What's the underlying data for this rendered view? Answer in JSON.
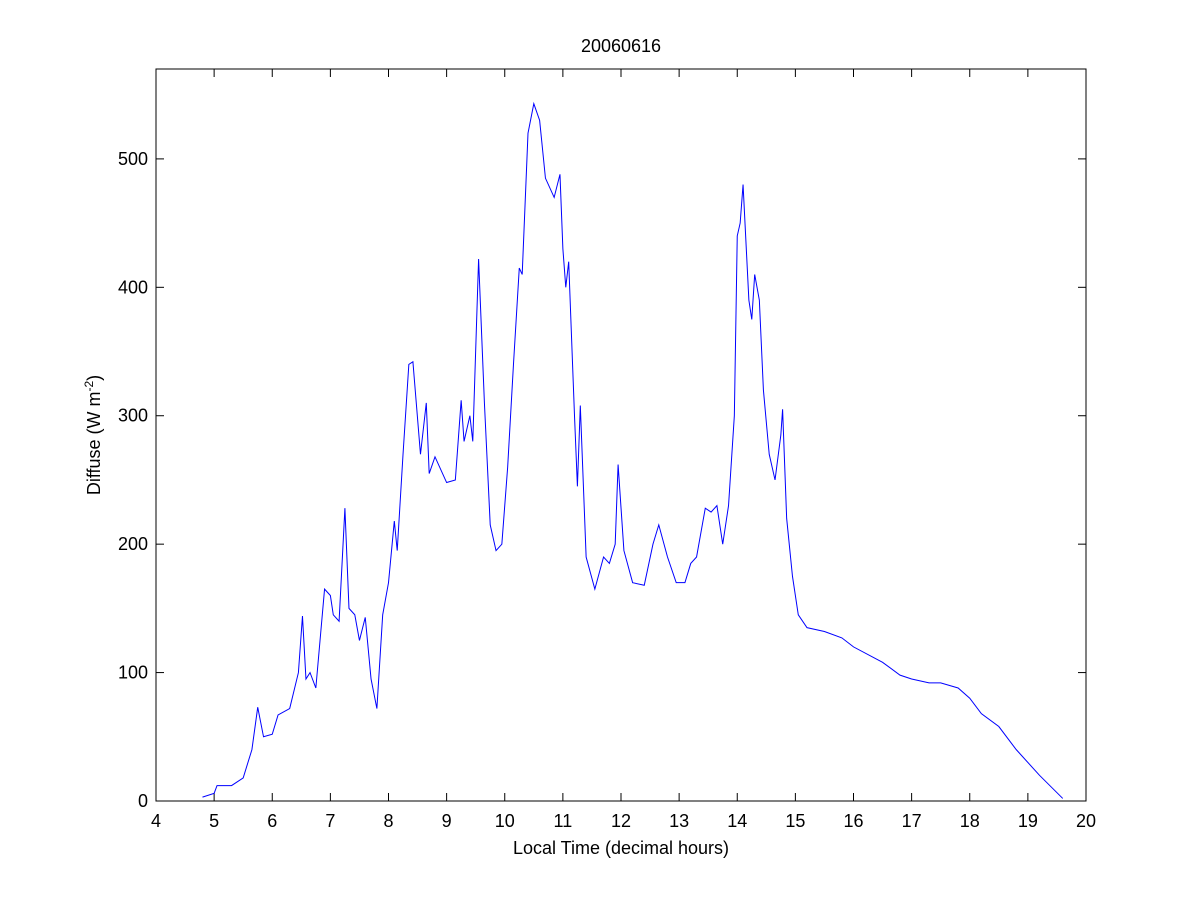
{
  "chart_data": {
    "type": "line",
    "title": "20060616",
    "x_label": "Local Time (decimal hours)",
    "y_label": {
      "text": "Diffuse (W m",
      "superscript": "-2",
      "close": ")"
    },
    "xlim": [
      4,
      20
    ],
    "xticks": [
      4,
      5,
      6,
      7,
      8,
      9,
      10,
      11,
      12,
      13,
      14,
      15,
      16,
      17,
      18,
      19,
      20
    ],
    "ylim": [
      0,
      570
    ],
    "yticks": [
      0,
      100,
      200,
      300,
      400,
      500
    ],
    "grid": false,
    "series": [
      {
        "color": "#0000ff",
        "x": [
          4.8,
          5.0,
          5.05,
          5.3,
          5.5,
          5.65,
          5.75,
          5.85,
          6.0,
          6.1,
          6.3,
          6.45,
          6.52,
          6.58,
          6.65,
          6.75,
          6.9,
          7.0,
          7.05,
          7.15,
          7.25,
          7.32,
          7.42,
          7.5,
          7.6,
          7.7,
          7.8,
          7.9,
          8.0,
          8.1,
          8.15,
          8.25,
          8.35,
          8.42,
          8.55,
          8.65,
          8.7,
          8.8,
          9.0,
          9.15,
          9.25,
          9.3,
          9.4,
          9.45,
          9.55,
          9.65,
          9.75,
          9.85,
          9.95,
          10.05,
          10.15,
          10.25,
          10.3,
          10.4,
          10.5,
          10.6,
          10.7,
          10.85,
          10.95,
          11.0,
          11.05,
          11.1,
          11.2,
          11.25,
          11.3,
          11.4,
          11.55,
          11.7,
          11.8,
          11.9,
          11.95,
          12.05,
          12.2,
          12.4,
          12.55,
          12.65,
          12.8,
          12.95,
          13.1,
          13.2,
          13.3,
          13.45,
          13.55,
          13.65,
          13.75,
          13.85,
          13.95,
          14.0,
          14.05,
          14.1,
          14.2,
          14.25,
          14.3,
          14.38,
          14.45,
          14.55,
          14.65,
          14.75,
          14.78,
          14.85,
          14.95,
          15.05,
          15.2,
          15.5,
          15.8,
          16.0,
          16.5,
          16.8,
          17.0,
          17.3,
          17.5,
          17.8,
          18.0,
          18.2,
          18.5,
          18.8,
          19.2,
          19.6
        ],
        "values": [
          3,
          6,
          12,
          12,
          18,
          40,
          73,
          50,
          52,
          67,
          72,
          100,
          144,
          95,
          100,
          88,
          165,
          160,
          145,
          140,
          228,
          150,
          145,
          125,
          143,
          95,
          72,
          145,
          170,
          218,
          195,
          270,
          340,
          342,
          270,
          310,
          255,
          268,
          248,
          250,
          312,
          280,
          300,
          280,
          422,
          310,
          215,
          195,
          200,
          260,
          340,
          415,
          410,
          520,
          543,
          530,
          485,
          470,
          488,
          430,
          400,
          420,
          300,
          245,
          308,
          190,
          165,
          190,
          185,
          200,
          262,
          195,
          170,
          168,
          200,
          215,
          190,
          170,
          170,
          185,
          190,
          228,
          225,
          230,
          200,
          230,
          300,
          440,
          450,
          480,
          390,
          375,
          410,
          390,
          320,
          270,
          250,
          285,
          305,
          220,
          175,
          145,
          135,
          132,
          127,
          120,
          108,
          98,
          95,
          92,
          92,
          88,
          80,
          68,
          58,
          40,
          20,
          2
        ]
      }
    ]
  }
}
